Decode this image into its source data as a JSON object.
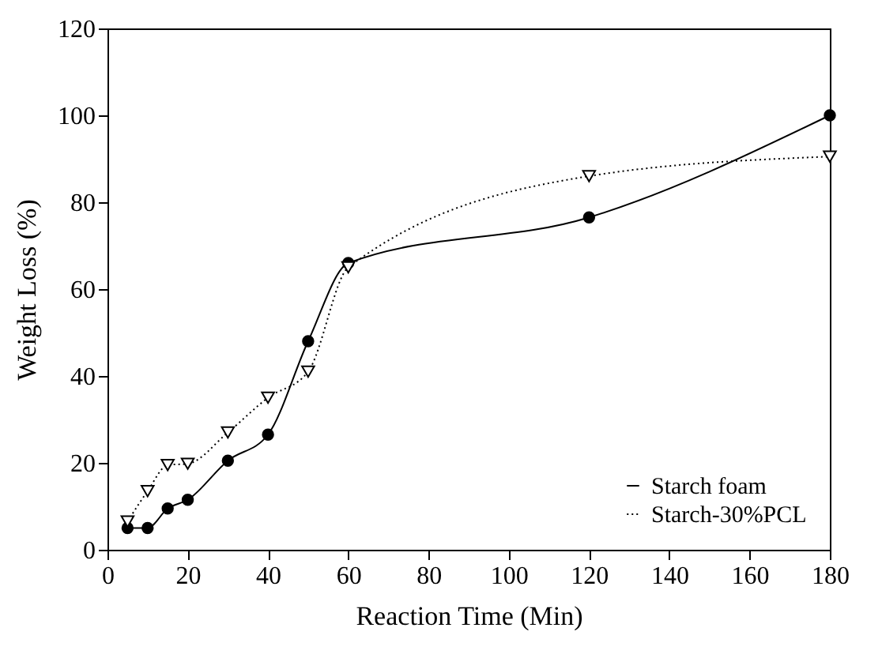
{
  "chart_data": {
    "type": "line",
    "xlabel": "Reaction Time (Min)",
    "ylabel": "Weight Loss (%)",
    "xlim": [
      0,
      180
    ],
    "ylim": [
      0,
      120
    ],
    "xticks": [
      0,
      20,
      40,
      60,
      80,
      100,
      120,
      140,
      160,
      180
    ],
    "yticks": [
      0,
      20,
      40,
      60,
      80,
      100,
      120
    ],
    "grid": false,
    "legend": "bottom right",
    "x": [
      5,
      10,
      15,
      20,
      30,
      40,
      50,
      60,
      120,
      180
    ],
    "series": [
      {
        "name": "Starch foam",
        "color": "#000000",
        "marker": "circle",
        "line_style": "solid",
        "values": [
          5,
          5,
          9.5,
          11.5,
          20.5,
          26.5,
          48,
          66,
          76.5,
          100
        ]
      },
      {
        "name": "Starch-30%PCL",
        "color": "#000000",
        "marker": "triangle",
        "line_style": "dotted",
        "values": [
          6.5,
          13.5,
          19.5,
          19.8,
          27,
          35,
          41,
          65,
          86,
          90.5
        ]
      }
    ]
  }
}
